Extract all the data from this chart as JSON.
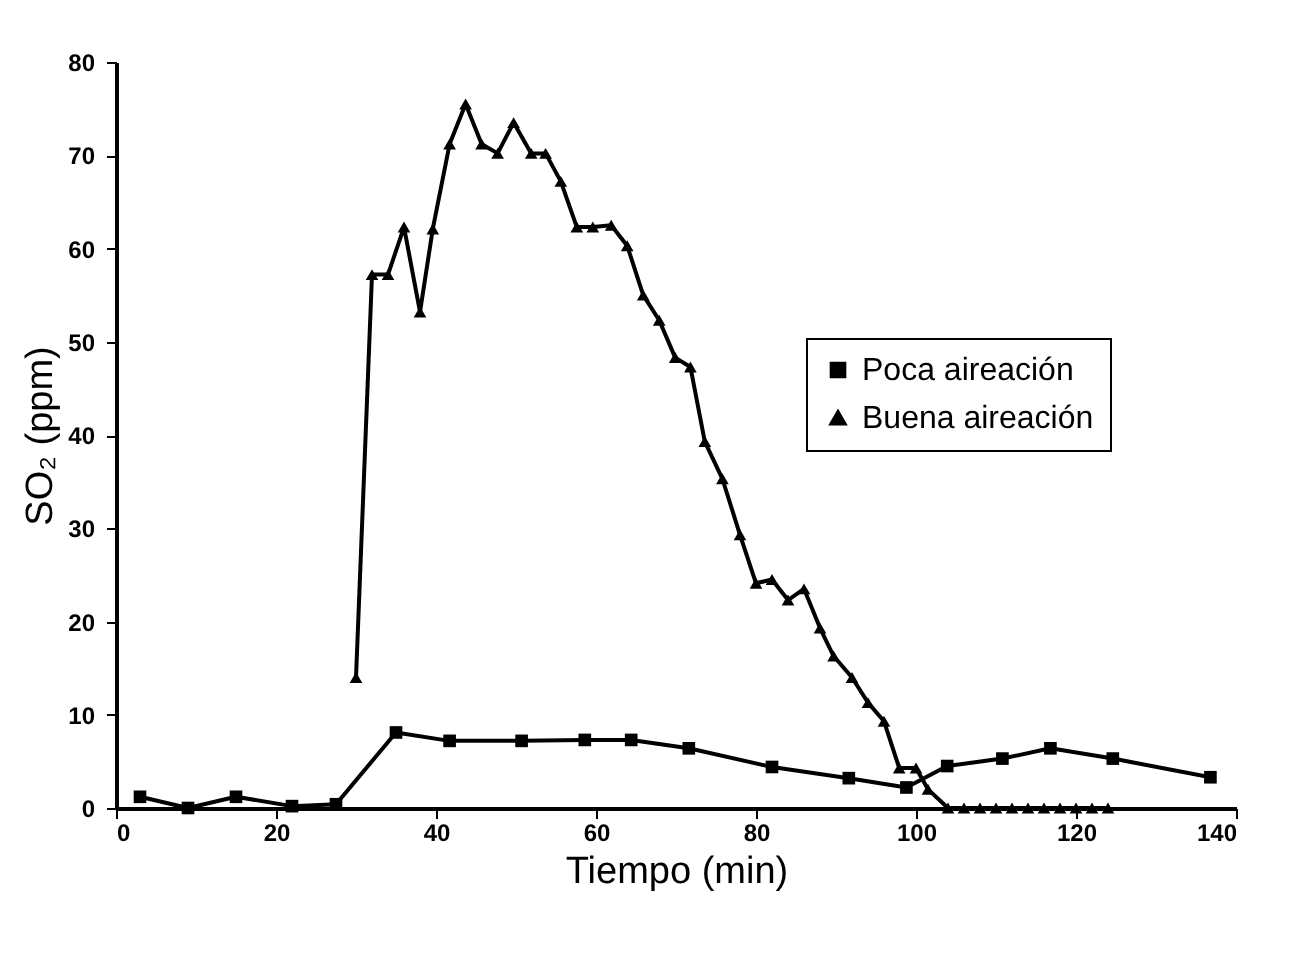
{
  "chart_data": {
    "type": "line",
    "xlabel": "Tiempo (min)",
    "ylabel": "SO₂ (ppm)",
    "xlim": [
      0,
      140
    ],
    "ylim": [
      0,
      80
    ],
    "xticks": [
      0,
      20,
      40,
      60,
      80,
      100,
      120,
      140
    ],
    "yticks": [
      0,
      10,
      20,
      30,
      40,
      50,
      60,
      70,
      80
    ],
    "grid": false,
    "legend": "right",
    "line_style": "solid",
    "series": [
      {
        "name": "Poca aireación",
        "color": "#000000",
        "marker": "square",
        "x": [
          3,
          9,
          15,
          22,
          27.5,
          35,
          41.7,
          50.7,
          58.6,
          64.4,
          71.6,
          82,
          91.6,
          98.8,
          103.9,
          110.8,
          116.8,
          124.6,
          136.8
        ],
        "values": [
          1.2,
          0,
          1.2,
          0.2,
          0.4,
          8.1,
          7.2,
          7.2,
          7.3,
          7.3,
          6.4,
          4.4,
          3.2,
          2.2,
          4.5,
          5.3,
          6.4,
          5.3,
          3.3
        ]
      },
      {
        "name": "Buena aireación",
        "color": "#000000",
        "marker": "triangle",
        "x": [
          30,
          32,
          34,
          36,
          38,
          39.6,
          41.7,
          43.7,
          45.7,
          47.7,
          49.7,
          51.9,
          53.7,
          55.6,
          57.6,
          59.6,
          61.9,
          63.9,
          65.9,
          67.9,
          69.9,
          71.8,
          73.6,
          75.8,
          78,
          80,
          82,
          84,
          86,
          88,
          89.7,
          92,
          94,
          96,
          97.9,
          100,
          101.5,
          104,
          106,
          108,
          110,
          112,
          114,
          116,
          118,
          120,
          122,
          124
        ],
        "values": [
          14,
          57.2,
          57.2,
          62.3,
          53.2,
          62.1,
          71.2,
          75.5,
          71.2,
          70.2,
          73.5,
          70.2,
          70.2,
          67.2,
          62.3,
          62.3,
          62.5,
          60.3,
          55,
          52.3,
          48.3,
          47.3,
          39.3,
          35.3,
          29.3,
          24.1,
          24.5,
          22.3,
          23.5,
          19.3,
          16.3,
          14,
          11.3,
          9.3,
          4.3,
          4.3,
          2,
          0,
          0,
          0,
          0,
          0,
          0,
          0,
          0,
          0,
          0,
          0
        ]
      }
    ]
  }
}
